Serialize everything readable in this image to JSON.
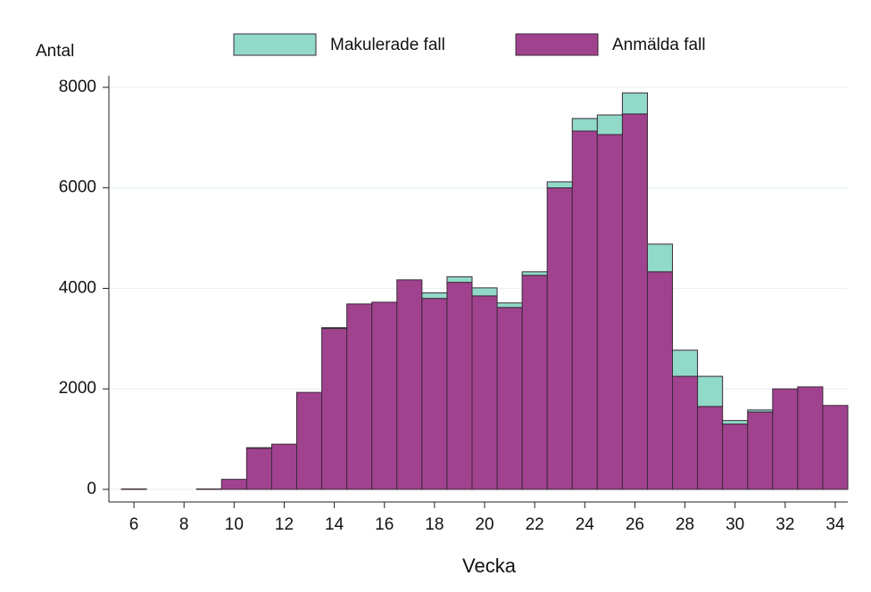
{
  "chart_data": {
    "type": "bar",
    "stacked": true,
    "x_label": "Vecka",
    "y_label": "Antal",
    "x": [
      6,
      7,
      8,
      9,
      10,
      11,
      12,
      13,
      14,
      15,
      16,
      17,
      18,
      19,
      20,
      21,
      22,
      23,
      24,
      25,
      26,
      27,
      28,
      29,
      30,
      31,
      32,
      33,
      34
    ],
    "series": [
      {
        "name": "Makulerade fall",
        "color": "#91d9c9",
        "values": [
          0,
          0,
          0,
          0,
          0,
          10,
          0,
          0,
          20,
          0,
          0,
          0,
          110,
          110,
          160,
          90,
          70,
          120,
          250,
          390,
          420,
          550,
          520,
          600,
          70,
          40,
          0,
          0,
          0
        ]
      },
      {
        "name": "Anmälda fall",
        "color": "#a1428f",
        "values": [
          10,
          0,
          0,
          10,
          200,
          820,
          900,
          1930,
          3200,
          3690,
          3725,
          4170,
          3800,
          4120,
          3850,
          3620,
          4260,
          6000,
          7130,
          7060,
          7470,
          4330,
          2250,
          1650,
          1300,
          1540,
          2000,
          2040,
          1670
        ]
      }
    ],
    "xlim": [
      5,
      34.5
    ],
    "xticks": [
      6,
      8,
      10,
      12,
      14,
      16,
      18,
      20,
      22,
      24,
      26,
      28,
      30,
      32,
      34
    ],
    "ylim": [
      -250,
      8230
    ],
    "yticks": [
      0,
      2000,
      4000,
      6000,
      8000
    ],
    "grid": true
  }
}
